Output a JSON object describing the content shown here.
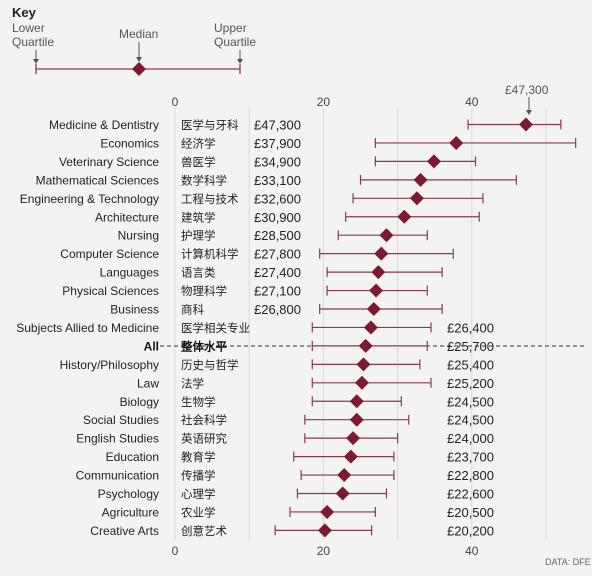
{
  "key": {
    "title": "Key",
    "lower_label_1": "Lower",
    "lower_label_2": "Quartile",
    "median_label": "Median",
    "upper_label_1": "Upper",
    "upper_label_2": "Quartile"
  },
  "callout": "£47,300",
  "source": "DATA: DFE",
  "colors": {
    "marker": "#7a1a33",
    "range": "#8a3a4a",
    "grid": "#d9d9d5",
    "background": "#f3f3f1"
  },
  "chart_data": {
    "type": "range-dot",
    "x_ticks": [
      0,
      20,
      40
    ],
    "xlim": [
      0,
      55
    ],
    "rows": [
      {
        "subject": "Medicine & Dentistry",
        "chinese": "医学与牙科",
        "salary": "£47,300",
        "median": 47.3,
        "lower": 39.5,
        "upper": 52.0
      },
      {
        "subject": "Economics",
        "chinese": "经济学",
        "salary": "£37,900",
        "median": 37.9,
        "lower": 27.0,
        "upper": 54.0
      },
      {
        "subject": "Veterinary Science",
        "chinese": "兽医学",
        "salary": "£34,900",
        "median": 34.9,
        "lower": 27.0,
        "upper": 40.5
      },
      {
        "subject": "Mathematical Sciences",
        "chinese": "数学科学",
        "salary": "£33,100",
        "median": 33.1,
        "lower": 25.0,
        "upper": 46.0
      },
      {
        "subject": "Engineering & Technology",
        "chinese": "工程与技术",
        "salary": "£32,600",
        "median": 32.6,
        "lower": 24.0,
        "upper": 41.5
      },
      {
        "subject": "Architecture",
        "chinese": "建筑学",
        "salary": "£30,900",
        "median": 30.9,
        "lower": 23.0,
        "upper": 41.0
      },
      {
        "subject": "Nursing",
        "chinese": "护理学",
        "salary": "£28,500",
        "median": 28.5,
        "lower": 22.0,
        "upper": 34.0
      },
      {
        "subject": "Computer Science",
        "chinese": "计算机科学",
        "salary": "£27,800",
        "median": 27.8,
        "lower": 19.5,
        "upper": 37.5
      },
      {
        "subject": "Languages",
        "chinese": "语言类",
        "salary": "£27,400",
        "median": 27.4,
        "lower": 20.5,
        "upper": 36.0
      },
      {
        "subject": "Physical Sciences",
        "chinese": "物理科学",
        "salary": "£27,100",
        "median": 27.1,
        "lower": 20.5,
        "upper": 34.0
      },
      {
        "subject": "Business",
        "chinese": "商科",
        "salary": "£26,800",
        "median": 26.8,
        "lower": 19.5,
        "upper": 36.0
      },
      {
        "subject": "Subjects Allied to Medicine",
        "chinese": "医学相关专业",
        "salary": "£26,400",
        "median": 26.4,
        "lower": 18.5,
        "upper": 34.5
      },
      {
        "subject": "All",
        "chinese": "整体水平",
        "salary": "£25,700",
        "median": 25.7,
        "lower": 18.5,
        "upper": 34.0,
        "highlight": true
      },
      {
        "subject": "History/Philosophy",
        "chinese": "历史与哲学",
        "salary": "£25,400",
        "median": 25.4,
        "lower": 18.5,
        "upper": 33.0
      },
      {
        "subject": "Law",
        "chinese": "法学",
        "salary": "£25,200",
        "median": 25.2,
        "lower": 18.5,
        "upper": 34.5
      },
      {
        "subject": "Biology",
        "chinese": "生物学",
        "salary": "£24,500",
        "median": 24.5,
        "lower": 18.5,
        "upper": 30.5
      },
      {
        "subject": "Social Studies",
        "chinese": "社会科学",
        "salary": "£24,500",
        "median": 24.5,
        "lower": 17.5,
        "upper": 31.5
      },
      {
        "subject": "English Studies",
        "chinese": "英语研究",
        "salary": "£24,000",
        "median": 24.0,
        "lower": 17.5,
        "upper": 30.0
      },
      {
        "subject": "Education",
        "chinese": "教育学",
        "salary": "£23,700",
        "median": 23.7,
        "lower": 16.0,
        "upper": 29.5
      },
      {
        "subject": "Communication",
        "chinese": "传播学",
        "salary": "£22,800",
        "median": 22.8,
        "lower": 17.0,
        "upper": 29.5
      },
      {
        "subject": "Psychology",
        "chinese": "心理学",
        "salary": "£22,600",
        "median": 22.6,
        "lower": 16.5,
        "upper": 28.5
      },
      {
        "subject": "Agriculture",
        "chinese": "农业学",
        "salary": "£20,500",
        "median": 20.5,
        "lower": 15.5,
        "upper": 27.0
      },
      {
        "subject": "Creative Arts",
        "chinese": "创意艺术",
        "salary": "£20,200",
        "median": 20.2,
        "lower": 13.5,
        "upper": 26.5
      }
    ]
  }
}
